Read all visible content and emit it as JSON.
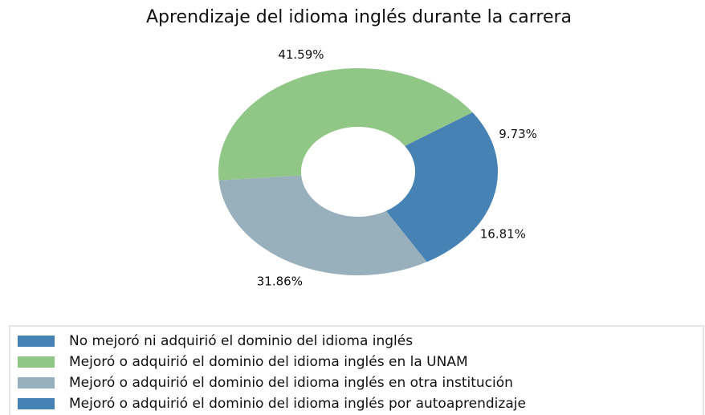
{
  "chart_data": {
    "type": "pie",
    "title": "Aprendizaje del idioma inglés durante la carrera",
    "categories": [
      "No mejoró ni adquirió el dominio del idioma inglés",
      "Mejoró o adquirió el dominio del idioma inglés en la UNAM",
      "Mejoró o adquirió el dominio del idioma inglés en otra institución",
      "Mejoró o adquirió el dominio del idioma inglés por autoaprendizaje"
    ],
    "values": [
      9.73,
      41.59,
      31.86,
      16.81
    ],
    "value_labels": [
      "9.73%",
      "41.59%",
      "31.86%",
      "16.81%"
    ],
    "colors": [
      "#4682b4",
      "#90c686",
      "#98afbc",
      "#4682b4"
    ],
    "legend": "bottom"
  }
}
